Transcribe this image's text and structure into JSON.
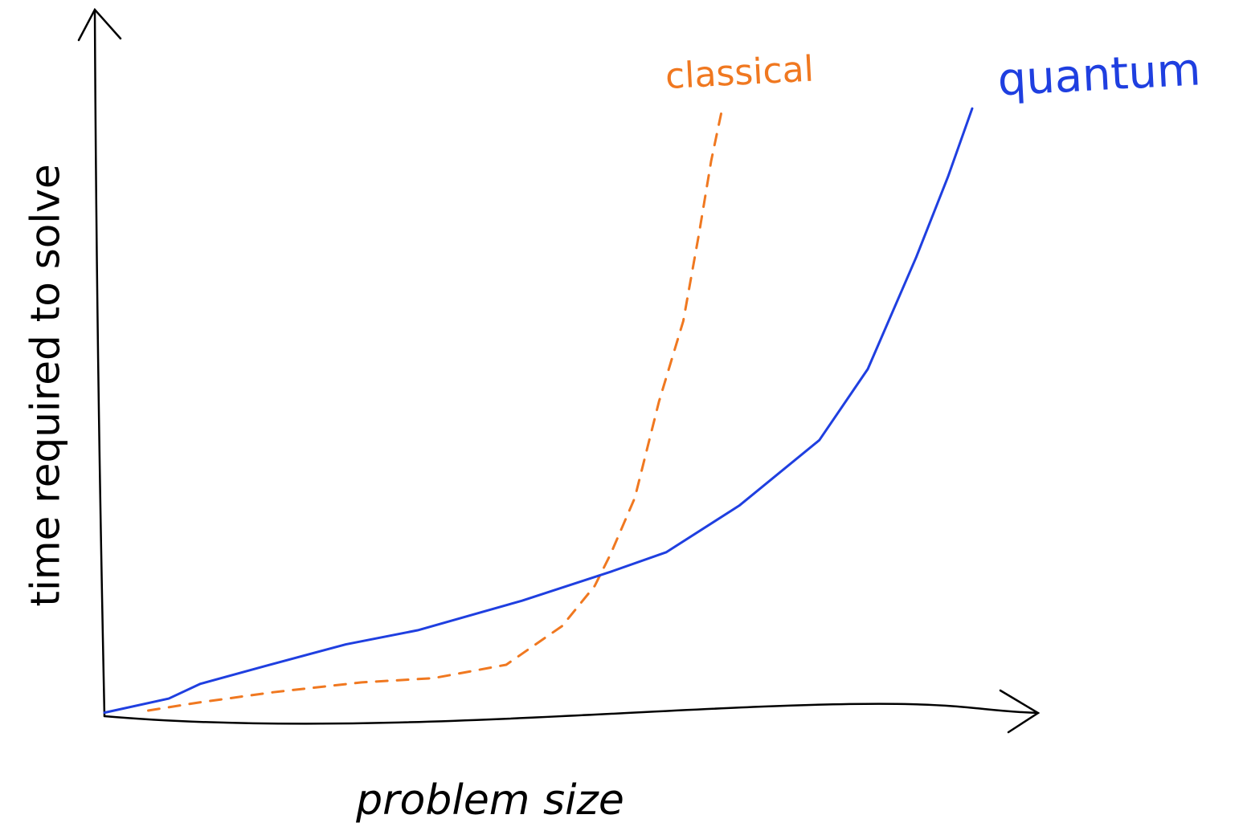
{
  "chart_data": {
    "type": "line",
    "x_label": "problem size",
    "y_label": "time required to solve",
    "xlim": [
      0,
      100
    ],
    "ylim": [
      0,
      100
    ],
    "series": [
      {
        "name": "classical",
        "color": "#f07820",
        "style": "dashed",
        "x": [
          4.7,
          9.9,
          18.1,
          27.6,
          35.3,
          43.1,
          49.1,
          52.6,
          54.3,
          56.9,
          59.5,
          62.1,
          63.8,
          65.1,
          66.2
        ],
        "values": [
          0.8,
          1.9,
          3.4,
          4.8,
          5.4,
          7.3,
          12.8,
          18.5,
          23.0,
          31.0,
          44.7,
          56.1,
          68.6,
          78.9,
          85.8
        ]
      },
      {
        "name": "quantum",
        "color": "#1f3fe0",
        "style": "solid",
        "x": [
          0,
          6.9,
          10.3,
          17.2,
          25.9,
          33.6,
          44.8,
          54.3,
          60.3,
          68.1,
          76.7,
          81.9,
          87.1,
          90.5,
          93.1
        ],
        "values": [
          0.5,
          2.5,
          4.6,
          7.1,
          10.2,
          12.2,
          16.4,
          20.5,
          23.3,
          29.9,
          39.2,
          49.3,
          65.2,
          76.6,
          86.3
        ]
      }
    ]
  }
}
